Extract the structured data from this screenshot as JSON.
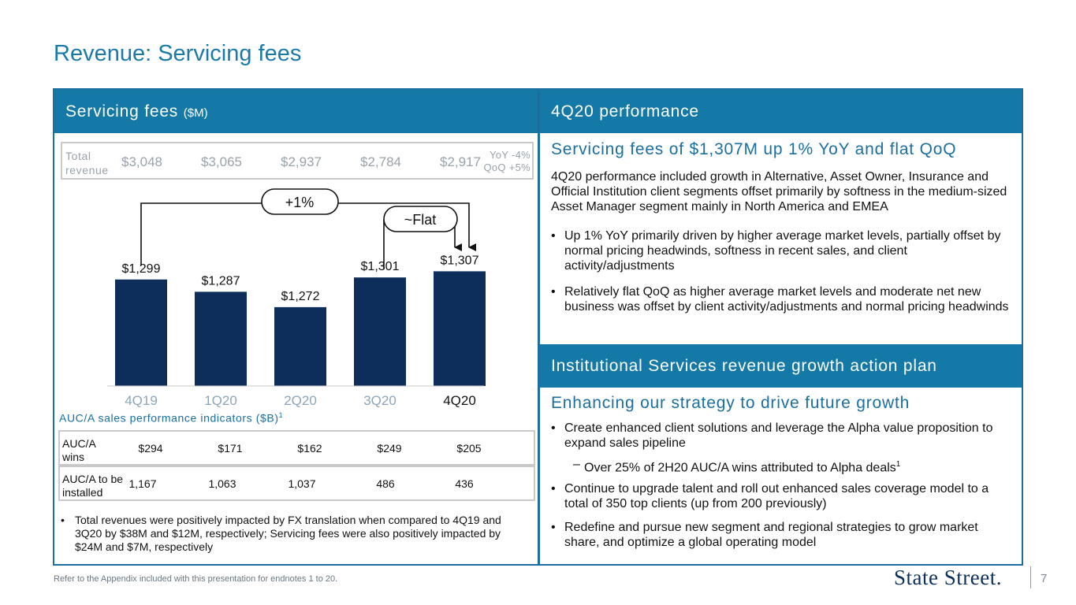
{
  "page": {
    "title": "Revenue: Servicing fees",
    "footer": "Refer to the Appendix included with this presentation for endnotes 1 to 20.",
    "logo": "State Street.",
    "page_number": "7"
  },
  "left": {
    "header": "Servicing fees",
    "header_unit": "($M)",
    "total_label": "Total revenue",
    "total_values": [
      "$3,048",
      "$3,065",
      "$2,937",
      "$2,784",
      "$2,917"
    ],
    "total_yoy": "YoY -4%",
    "total_qoq": "QoQ +5%",
    "callout_yoy": "+1%",
    "callout_qoq": "~Flat",
    "auc_title": "AUC/A sales performance indicators ($B)",
    "auc_title_sup": "1",
    "auc_rows": [
      {
        "label": "AUC/A wins",
        "values": [
          "$294",
          "$171",
          "$162",
          "$249",
          "$205"
        ]
      },
      {
        "label": "AUC/A to be installed",
        "values": [
          "1,167",
          "1,063",
          "1,037",
          "486",
          "436"
        ]
      }
    ],
    "note": "Total revenues were positively impacted by FX translation when compared to 4Q19 and 3Q20 by $38M and $12M, respectively; Servicing fees were also positively impacted by $24M and $7M, respectively"
  },
  "chart_data": {
    "type": "bar",
    "categories": [
      "4Q19",
      "1Q20",
      "2Q20",
      "3Q20",
      "4Q20"
    ],
    "values": [
      1299,
      1287,
      1272,
      1301,
      1307
    ],
    "data_labels": [
      "$1,299",
      "$1,287",
      "$1,272",
      "$1,301",
      "$1,307"
    ],
    "title": "Servicing fees ($M)",
    "xlabel": "",
    "ylabel": "",
    "grid": false,
    "bar_color": "#0d2d5a",
    "highlight_category": "4Q20"
  },
  "right": {
    "header1": "4Q20 performance",
    "sub1": "Servicing fees of $1,307M up 1% YoY and flat QoQ",
    "para1": "4Q20 performance included growth in Alternative, Asset Owner, Insurance and Official Institution client segments offset primarily by softness in the medium-sized Asset Manager segment mainly in North America and EMEA",
    "bullet1": "Up 1% YoY primarily driven by higher average market levels, partially offset by normal pricing headwinds, softness in recent sales, and client activity/adjustments",
    "bullet2": "Relatively flat QoQ as higher average market levels and moderate net new business was offset by client activity/adjustments and normal pricing headwinds",
    "header2": "Institutional Services revenue growth action plan",
    "sub2": "Enhancing our strategy to drive future growth",
    "bullet3": "Create enhanced client solutions and leverage the Alpha value proposition to expand sales pipeline",
    "dash1": "Over 25% of 2H20 AUC/A wins attributed to Alpha deals",
    "dash1_sup": "1",
    "bullet4": "Continue to upgrade talent and roll out enhanced sales coverage model to a total of 350 top clients (up from 200 previously)",
    "bullet5": "Redefine and pursue new segment and regional strategies to grow market share, and optimize a global operating model"
  }
}
